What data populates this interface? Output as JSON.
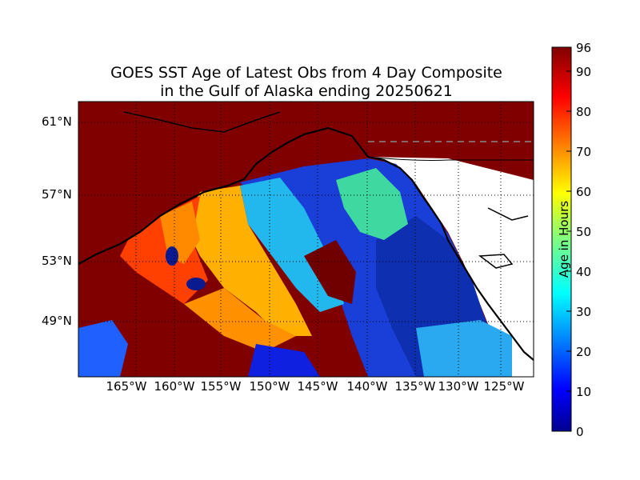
{
  "title_line1": "GOES SST Age of Latest Obs from 4 Day Composite",
  "title_line2": "in the Gulf of Alaska ending 20250621",
  "lat_labels": [
    "61°N",
    "57°N",
    "53°N",
    "49°N"
  ],
  "lon_labels": [
    "165°W",
    "160°W",
    "155°W",
    "150°W",
    "145°W",
    "140°W",
    "135°W",
    "130°W",
    "125°W"
  ],
  "colorbar": {
    "label": "Age in Hours",
    "ticks": [
      "0",
      "10",
      "20",
      "30",
      "40",
      "50",
      "60",
      "70",
      "80",
      "90",
      "96"
    ],
    "min": 0,
    "max": 96,
    "colormap": "jet"
  },
  "colors": {
    "stale_red": "#800000",
    "land": "#ffffff",
    "coast": "#000000"
  }
}
